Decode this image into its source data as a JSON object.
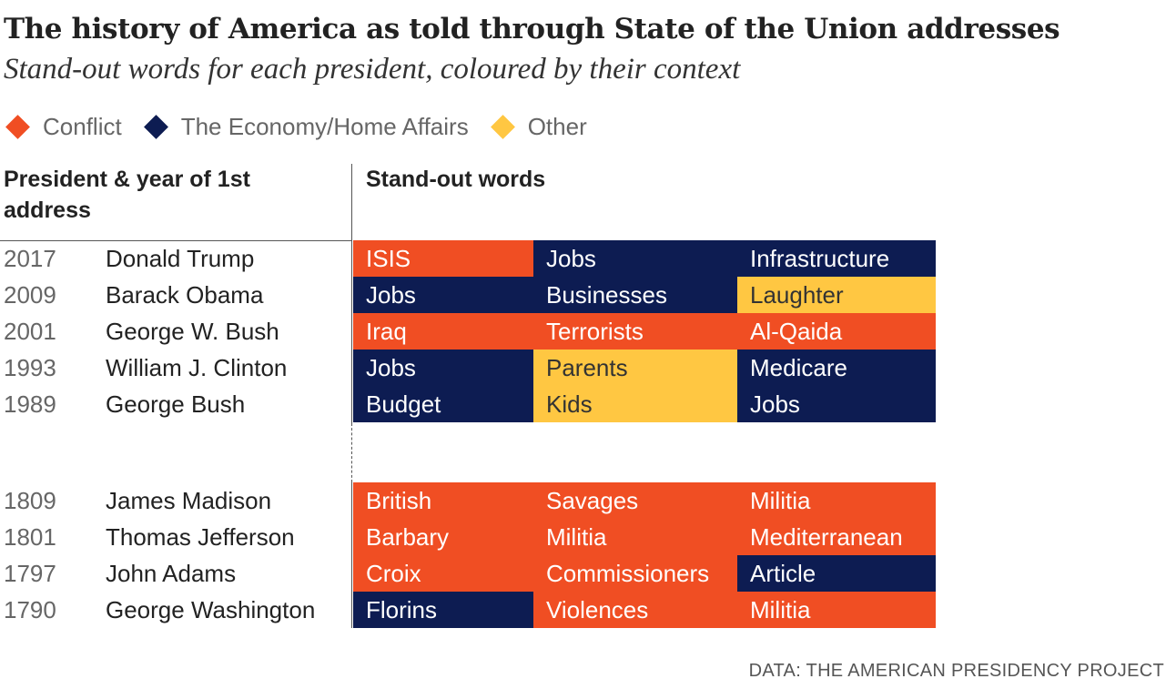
{
  "title": "The history of America as told through State of the Union addresses",
  "subtitle": "Stand-out words for each president, coloured by their context",
  "legend": [
    {
      "label": "Conflict",
      "color": "#f04e23"
    },
    {
      "label": "The Economy/Home Affairs",
      "color": "#0d1c52"
    },
    {
      "label": "Other",
      "color": "#ffc742"
    }
  ],
  "columns": {
    "president": "President & year of 1st address",
    "words": "Stand-out words"
  },
  "source": "DATA: THE AMERICAN PRESIDENCY PROJECT",
  "chart_data": {
    "type": "table",
    "title": "The history of America as told through State of the Union addresses",
    "categories": {
      "conflict": "Conflict",
      "economy": "The Economy/Home Affairs",
      "other": "Other"
    },
    "rows": [
      {
        "year": "2017",
        "president": "Donald Trump",
        "words": [
          {
            "word": "ISIS",
            "cat": "conflict"
          },
          {
            "word": "Jobs",
            "cat": "economy"
          },
          {
            "word": "Infrastructure",
            "cat": "economy"
          }
        ]
      },
      {
        "year": "2009",
        "president": "Barack Obama",
        "words": [
          {
            "word": "Jobs",
            "cat": "economy"
          },
          {
            "word": "Businesses",
            "cat": "economy"
          },
          {
            "word": "Laughter",
            "cat": "other"
          }
        ]
      },
      {
        "year": "2001",
        "president": "George W. Bush",
        "words": [
          {
            "word": "Iraq",
            "cat": "conflict"
          },
          {
            "word": "Terrorists",
            "cat": "conflict"
          },
          {
            "word": "Al-Qaida",
            "cat": "conflict"
          }
        ]
      },
      {
        "year": "1993",
        "president": "William J. Clinton",
        "words": [
          {
            "word": "Jobs",
            "cat": "economy"
          },
          {
            "word": "Parents",
            "cat": "other"
          },
          {
            "word": "Medicare",
            "cat": "economy"
          }
        ]
      },
      {
        "year": "1989",
        "president": "George Bush",
        "words": [
          {
            "word": "Budget",
            "cat": "economy"
          },
          {
            "word": "Kids",
            "cat": "other"
          },
          {
            "word": "Jobs",
            "cat": "economy"
          }
        ]
      },
      {
        "year": "1809",
        "president": "James Madison",
        "words": [
          {
            "word": "British",
            "cat": "conflict"
          },
          {
            "word": "Savages",
            "cat": "conflict"
          },
          {
            "word": "Militia",
            "cat": "conflict"
          }
        ]
      },
      {
        "year": "1801",
        "president": "Thomas Jefferson",
        "words": [
          {
            "word": "Barbary",
            "cat": "conflict"
          },
          {
            "word": "Militia",
            "cat": "conflict"
          },
          {
            "word": "Mediterranean",
            "cat": "conflict"
          }
        ]
      },
      {
        "year": "1797",
        "president": "John Adams",
        "words": [
          {
            "word": "Croix",
            "cat": "conflict"
          },
          {
            "word": "Commissioners",
            "cat": "conflict"
          },
          {
            "word": "Article",
            "cat": "economy"
          }
        ]
      },
      {
        "year": "1790",
        "president": "George Washington",
        "words": [
          {
            "word": "Florins",
            "cat": "economy"
          },
          {
            "word": "Violences",
            "cat": "conflict"
          },
          {
            "word": "Militia",
            "cat": "conflict"
          }
        ]
      }
    ],
    "colors": {
      "conflict": "#f04e23",
      "economy": "#0d1c52",
      "other": "#ffc742"
    },
    "text_colors": {
      "conflict": "#ffffff",
      "economy": "#ffffff",
      "other": "#333333"
    }
  }
}
